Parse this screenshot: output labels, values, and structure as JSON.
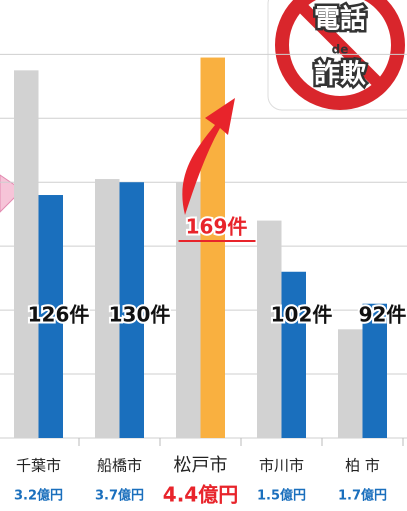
{
  "chart_data": {
    "type": "bar",
    "categories": [
      "千葉市",
      "船橋市",
      "松戸市",
      "市川市",
      "柏 市"
    ],
    "amounts": [
      "3.2億円",
      "3.7億円",
      "4.4億円",
      "1.5億円",
      "1.7億円"
    ],
    "series": [
      {
        "color": "#d2d2d2",
        "values": [
          165,
          131,
          130,
          118,
          84
        ]
      },
      {
        "color": "#1a6fbd",
        "colors": [
          "#1a6fbd",
          "#1a6fbd",
          "#f9b040",
          "#1a6fbd",
          "#1a6fbd"
        ],
        "values": [
          126,
          130,
          169,
          102,
          92
        ],
        "value_labels": [
          "126件",
          "130件",
          "169件",
          "102件",
          "92件"
        ]
      }
    ],
    "ylim": [
      50,
      187
    ],
    "yticks": [
      50,
      70,
      90,
      110,
      130,
      150,
      170
    ],
    "grid": true
  },
  "badge": {
    "top": "電話",
    "middle": "de",
    "bottom": "詐欺"
  }
}
